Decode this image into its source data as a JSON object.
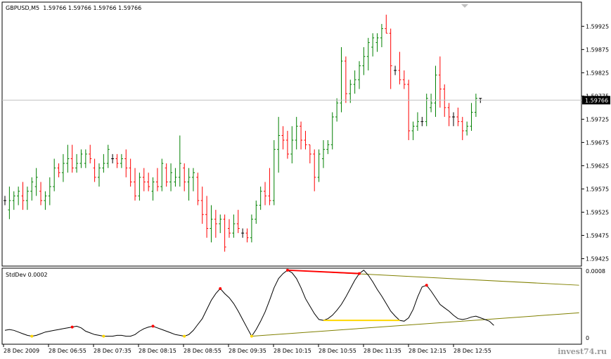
{
  "header": {
    "symbol": "GBPUSD,M5",
    "ohlc": "1.59766 1.59766 1.59766 1.59766"
  },
  "indicator": {
    "label": "StdDev 0.0002",
    "scale_top": "0.0008",
    "scale_bottom": "0"
  },
  "watermark": "invest74.ru",
  "current_price": "1.59766",
  "colors": {
    "background": "#ffffff",
    "frame": "#000000",
    "bull": "#008000",
    "bear": "#ff0000",
    "price_line": "#c0c0c0",
    "indicator_line": "#000000",
    "peak_marker": "#ff0000",
    "trough_marker": "#ffd700",
    "trendline": "#808000"
  },
  "chart_data": [
    {
      "type": "ohlc-bar",
      "title": "GBPUSD,M5",
      "x_tick_labels": [
        "28 Dec 2009",
        "28 Dec 06:55",
        "28 Dec 07:35",
        "28 Dec 08:15",
        "28 Dec 08:55",
        "28 Dec 09:35",
        "28 Dec 10:15",
        "28 Dec 10:55",
        "28 Dec 11:35",
        "28 Dec 12:15",
        "28 Dec 12:55"
      ],
      "y_tick_labels": [
        "1.59925",
        "1.59875",
        "1.59825",
        "1.59775",
        "1.59725",
        "1.59675",
        "1.59625",
        "1.59575",
        "1.59525",
        "1.59475",
        "1.59425"
      ],
      "y_range": [
        1.59409,
        1.59977
      ],
      "last_price": 1.59766,
      "bars": [
        [
          1.5955,
          1.5956,
          1.5954,
          1.5955
        ],
        [
          1.5953,
          1.5958,
          1.5951,
          1.5955
        ],
        [
          1.5955,
          1.5957,
          1.5953,
          1.5956
        ],
        [
          1.5956,
          1.5958,
          1.5954,
          1.5957
        ],
        [
          1.5956,
          1.5959,
          1.5953,
          1.5955
        ],
        [
          1.5955,
          1.5958,
          1.5953,
          1.5957
        ],
        [
          1.5957,
          1.596,
          1.5955,
          1.5959
        ],
        [
          1.5958,
          1.5962,
          1.5956,
          1.596
        ],
        [
          1.5957,
          1.5959,
          1.5954,
          1.5955
        ],
        [
          1.5955,
          1.5957,
          1.5953,
          1.5956
        ],
        [
          1.5956,
          1.596,
          1.5954,
          1.5958
        ],
        [
          1.5958,
          1.5964,
          1.5957,
          1.5962
        ],
        [
          1.5962,
          1.5963,
          1.596,
          1.5961
        ],
        [
          1.5961,
          1.5965,
          1.5959,
          1.5963
        ],
        [
          1.5963,
          1.5967,
          1.5961,
          1.5964
        ],
        [
          1.5964,
          1.5967,
          1.5961,
          1.5962
        ],
        [
          1.5962,
          1.5965,
          1.5961,
          1.5963
        ],
        [
          1.5963,
          1.5966,
          1.5962,
          1.5965
        ],
        [
          1.5963,
          1.5966,
          1.5962,
          1.5965
        ],
        [
          1.5965,
          1.5967,
          1.5963,
          1.5964
        ],
        [
          1.5962,
          1.5964,
          1.5959,
          1.596
        ],
        [
          1.596,
          1.5963,
          1.5958,
          1.5962
        ],
        [
          1.5962,
          1.5965,
          1.5961,
          1.5963
        ],
        [
          1.5963,
          1.5967,
          1.5962,
          1.5966
        ],
        [
          1.5964,
          1.5965,
          1.5963,
          1.5964
        ],
        [
          1.5964,
          1.5965,
          1.5962,
          1.5963
        ],
        [
          1.5963,
          1.5965,
          1.5962,
          1.5964
        ],
        [
          1.5964,
          1.5966,
          1.596,
          1.5962
        ],
        [
          1.5962,
          1.5964,
          1.5958,
          1.5959
        ],
        [
          1.5959,
          1.5962,
          1.5955,
          1.5956
        ],
        [
          1.5956,
          1.5961,
          1.5955,
          1.596
        ],
        [
          1.596,
          1.5962,
          1.5957,
          1.5959
        ],
        [
          1.5959,
          1.5961,
          1.5957,
          1.5958
        ],
        [
          1.5957,
          1.596,
          1.5955,
          1.5959
        ],
        [
          1.5959,
          1.5962,
          1.5957,
          1.5958
        ],
        [
          1.5958,
          1.5964,
          1.5957,
          1.5963
        ],
        [
          1.5962,
          1.5963,
          1.5958,
          1.5959
        ],
        [
          1.5959,
          1.5963,
          1.5957,
          1.5961
        ],
        [
          1.5959,
          1.5962,
          1.5958,
          1.596
        ],
        [
          1.596,
          1.5969,
          1.5958,
          1.5963
        ],
        [
          1.5962,
          1.5963,
          1.5957,
          1.5959
        ],
        [
          1.5959,
          1.5962,
          1.5955,
          1.596
        ],
        [
          1.596,
          1.5962,
          1.5957,
          1.5961
        ],
        [
          1.596,
          1.5961,
          1.5954,
          1.5955
        ],
        [
          1.5955,
          1.5958,
          1.595,
          1.5952
        ],
        [
          1.5952,
          1.5956,
          1.5947,
          1.5949
        ],
        [
          1.5949,
          1.5954,
          1.5946,
          1.5951
        ],
        [
          1.5951,
          1.5953,
          1.5947,
          1.595
        ],
        [
          1.595,
          1.5952,
          1.5948,
          1.5951
        ],
        [
          1.5951,
          1.5952,
          1.5944,
          1.5945
        ],
        [
          1.5949,
          1.5951,
          1.5947,
          1.5948
        ],
        [
          1.5948,
          1.5952,
          1.5947,
          1.595
        ],
        [
          1.595,
          1.5953,
          1.5948,
          1.5949
        ],
        [
          1.5948,
          1.5949,
          1.5947,
          1.5948
        ],
        [
          1.5948,
          1.5949,
          1.5946,
          1.5947
        ],
        [
          1.5947,
          1.5952,
          1.5946,
          1.5951
        ],
        [
          1.5951,
          1.5955,
          1.595,
          1.5954
        ],
        [
          1.5954,
          1.5958,
          1.5953,
          1.5957
        ],
        [
          1.5957,
          1.5959,
          1.5954,
          1.5956
        ],
        [
          1.5956,
          1.5962,
          1.5954,
          1.5955
        ],
        [
          1.5955,
          1.5968,
          1.5954,
          1.5966
        ],
        [
          1.5966,
          1.5973,
          1.5961,
          1.5969
        ],
        [
          1.5969,
          1.5971,
          1.5966,
          1.5968
        ],
        [
          1.5968,
          1.597,
          1.5964,
          1.5965
        ],
        [
          1.5965,
          1.5971,
          1.5963,
          1.5968
        ],
        [
          1.5968,
          1.5973,
          1.5966,
          1.5971
        ],
        [
          1.5971,
          1.5972,
          1.5966,
          1.5968
        ],
        [
          1.5968,
          1.597,
          1.5966,
          1.5967
        ],
        [
          1.5967,
          1.5967,
          1.5963,
          1.5965
        ],
        [
          1.5965,
          1.5966,
          1.5957,
          1.596
        ],
        [
          1.596,
          1.5966,
          1.5959,
          1.5965
        ],
        [
          1.5964,
          1.5968,
          1.5962,
          1.5966
        ],
        [
          1.5966,
          1.5968,
          1.5965,
          1.5967
        ],
        [
          1.5967,
          1.5974,
          1.5966,
          1.5973
        ],
        [
          1.5973,
          1.5977,
          1.5972,
          1.5976
        ],
        [
          1.5976,
          1.5988,
          1.5974,
          1.5985
        ],
        [
          1.5985,
          1.5986,
          1.5976,
          1.5978
        ],
        [
          1.5978,
          1.5981,
          1.5976,
          1.598
        ],
        [
          1.598,
          1.5983,
          1.5978,
          1.5981
        ],
        [
          1.5981,
          1.5985,
          1.5979,
          1.5984
        ],
        [
          1.5984,
          1.5988,
          1.5982,
          1.5986
        ],
        [
          1.5986,
          1.599,
          1.5983,
          1.5989
        ],
        [
          1.5988,
          1.5991,
          1.5986,
          1.599
        ],
        [
          1.5989,
          1.5991,
          1.5987,
          1.599
        ],
        [
          1.599,
          1.5993,
          1.5988,
          1.5992
        ],
        [
          1.5992,
          1.5995,
          1.5991,
          1.5991
        ],
        [
          1.5991,
          1.5992,
          1.5979,
          1.5984
        ],
        [
          1.5983,
          1.5984,
          1.5982,
          1.5983
        ],
        [
          1.5983,
          1.5987,
          1.598,
          1.5981
        ],
        [
          1.5981,
          1.5983,
          1.5979,
          1.598
        ],
        [
          1.598,
          1.5981,
          1.5968,
          1.597
        ],
        [
          1.597,
          1.5972,
          1.5968,
          1.5971
        ],
        [
          1.5971,
          1.5974,
          1.597,
          1.5972
        ],
        [
          1.5972,
          1.5973,
          1.5971,
          1.5972
        ],
        [
          1.5972,
          1.5978,
          1.5971,
          1.5977
        ],
        [
          1.5975,
          1.5978,
          1.5974,
          1.5976
        ],
        [
          1.5976,
          1.5984,
          1.5973,
          1.5982
        ],
        [
          1.5982,
          1.5986,
          1.5975,
          1.5979
        ],
        [
          1.5979,
          1.598,
          1.5973,
          1.5975
        ],
        [
          1.5975,
          1.5976,
          1.5971,
          1.5973
        ],
        [
          1.5973,
          1.5974,
          1.5971,
          1.5973
        ],
        [
          1.5973,
          1.5975,
          1.5971,
          1.5972
        ],
        [
          1.5972,
          1.5973,
          1.5968,
          1.597
        ],
        [
          1.597,
          1.5972,
          1.5969,
          1.5971
        ],
        [
          1.5971,
          1.5976,
          1.597,
          1.5974
        ],
        [
          1.5974,
          1.5978,
          1.5973,
          1.5977
        ],
        [
          1.5977,
          1.5977,
          1.5976,
          1.5977
        ]
      ]
    },
    {
      "type": "line",
      "title": "StdDev 0.0002",
      "y_range": [
        0,
        0.0008
      ],
      "y_tick_labels": [
        "0.0008",
        "0"
      ],
      "values": [
        9e-05,
        0.0001,
        9e-05,
        7e-05,
        5e-05,
        3e-05,
        2e-05,
        3e-05,
        5e-05,
        7e-05,
        8e-05,
        9e-05,
        0.0001,
        0.00011,
        0.00012,
        0.00013,
        0.00014,
        0.00012,
        8e-05,
        6e-05,
        4e-05,
        3e-05,
        2e-05,
        2e-05,
        2e-05,
        3e-05,
        3e-05,
        2e-05,
        2e-05,
        4e-05,
        8e-05,
        0.00011,
        0.00013,
        0.00014,
        0.00012,
        0.0001,
        8e-05,
        6e-05,
        4e-05,
        3e-05,
        2e-05,
        4e-05,
        9e-05,
        0.00016,
        0.00023,
        0.00034,
        0.00045,
        0.00053,
        0.00059,
        0.00053,
        0.00048,
        0.00041,
        0.00032,
        0.00022,
        0.00012,
        2e-05,
        0.0001,
        0.0002,
        0.00031,
        0.00045,
        0.0006,
        0.00071,
        0.00077,
        0.00081,
        0.00078,
        0.00071,
        0.0006,
        0.00047,
        0.00038,
        0.00029,
        0.00022,
        0.00021,
        0.00023,
        0.00027,
        0.00033,
        0.0004,
        0.00049,
        0.00059,
        0.00069,
        0.00077,
        0.00081,
        0.00075,
        0.00067,
        0.00058,
        0.0005,
        0.00041,
        0.00032,
        0.00026,
        0.00021,
        0.0002,
        0.00024,
        0.00034,
        0.00049,
        0.00061,
        0.00063,
        0.00056,
        0.00048,
        0.0004,
        0.00036,
        0.00032,
        0.00027,
        0.00023,
        0.00022,
        0.00023,
        0.00025,
        0.00026,
        0.00024,
        0.00022,
        0.0002,
        0.00015
      ],
      "peaks": [
        15,
        33,
        48,
        63,
        79,
        94
      ],
      "troughs": [
        6,
        22,
        40,
        55
      ],
      "highlight_segments": [
        {
          "from": 63,
          "to": 79,
          "color": "#ff0000"
        },
        {
          "from": 71,
          "to": 88,
          "color": "#ffd700"
        }
      ],
      "trendlines": [
        {
          "from": [
            63,
            0.00081
          ],
          "to": [
            128,
            0.00063
          ],
          "color": "#808000"
        },
        {
          "from": [
            55,
            2e-05
          ],
          "to": [
            128,
            0.0003
          ],
          "color": "#808000"
        }
      ]
    }
  ]
}
